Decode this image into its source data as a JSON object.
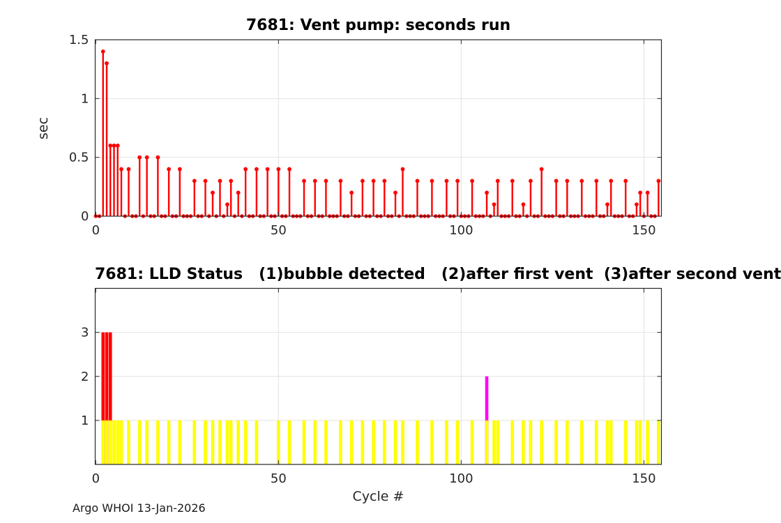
{
  "figure": {
    "background": "#ffffff"
  },
  "footer": {
    "text": "Argo WHOI 13-Jan-2026"
  },
  "style": {
    "axis_color": "#262626",
    "grid_color": "#e2e2e2",
    "tick_label_color": "#262626",
    "stem_color": "#ff0000",
    "status1_color": "#ffff00",
    "status2_color": "#ff00ff",
    "status3_color": "#ff0000"
  },
  "chart_data": [
    {
      "type": "stem",
      "title": "7681: Vent pump: seconds run",
      "ylabel": "sec",
      "xlabel": "",
      "xlim": [
        -0.25,
        155
      ],
      "ylim": [
        0,
        1.5
      ],
      "xticks": [
        0,
        50,
        100,
        150
      ],
      "yticks": [
        0,
        0.5,
        1,
        1.5
      ],
      "ytick_labels": [
        "0",
        "0.5",
        "1",
        "1.5"
      ],
      "xtick_labels": [
        "0",
        "50",
        "100",
        "150"
      ],
      "grid": true,
      "cycle_range": [
        0,
        154
      ],
      "zero_fill": 0,
      "nonzero_points": [
        [
          2,
          1.4
        ],
        [
          3,
          1.3
        ],
        [
          4,
          0.6
        ],
        [
          5,
          0.6
        ],
        [
          6,
          0.6
        ],
        [
          7,
          0.4
        ],
        [
          9,
          0.4
        ],
        [
          12,
          0.5
        ],
        [
          14,
          0.5
        ],
        [
          17,
          0.5
        ],
        [
          20,
          0.4
        ],
        [
          23,
          0.4
        ],
        [
          27,
          0.3
        ],
        [
          30,
          0.3
        ],
        [
          32,
          0.2
        ],
        [
          34,
          0.3
        ],
        [
          36,
          0.1
        ],
        [
          37,
          0.3
        ],
        [
          39,
          0.2
        ],
        [
          41,
          0.4
        ],
        [
          44,
          0.4
        ],
        [
          47,
          0.4
        ],
        [
          50,
          0.4
        ],
        [
          53,
          0.4
        ],
        [
          57,
          0.3
        ],
        [
          60,
          0.3
        ],
        [
          63,
          0.3
        ],
        [
          67,
          0.3
        ],
        [
          70,
          0.2
        ],
        [
          73,
          0.3
        ],
        [
          76,
          0.3
        ],
        [
          79,
          0.3
        ],
        [
          82,
          0.2
        ],
        [
          84,
          0.4
        ],
        [
          88,
          0.3
        ],
        [
          92,
          0.3
        ],
        [
          96,
          0.3
        ],
        [
          99,
          0.3
        ],
        [
          103,
          0.3
        ],
        [
          107,
          0.2
        ],
        [
          109,
          0.1
        ],
        [
          110,
          0.3
        ],
        [
          114,
          0.3
        ],
        [
          117,
          0.1
        ],
        [
          119,
          0.3
        ],
        [
          122,
          0.4
        ],
        [
          126,
          0.3
        ],
        [
          129,
          0.3
        ],
        [
          133,
          0.3
        ],
        [
          137,
          0.3
        ],
        [
          140,
          0.1
        ],
        [
          141,
          0.3
        ],
        [
          145,
          0.3
        ],
        [
          148,
          0.1
        ],
        [
          149,
          0.2
        ],
        [
          151,
          0.2
        ],
        [
          154,
          0.3
        ]
      ]
    },
    {
      "type": "bar",
      "title": "7681: LLD Status   (1)bubble detected   (2)after first vent  (3)after second vent",
      "xlabel": "Cycle #",
      "xlim": [
        -0.25,
        155
      ],
      "ylim": [
        0,
        4
      ],
      "xticks": [
        0,
        50,
        100,
        150
      ],
      "yticks": [
        1,
        2,
        3
      ],
      "ytick_labels": [
        "1",
        "2",
        "3"
      ],
      "xtick_labels": [
        "0",
        "50",
        "100",
        "150"
      ],
      "grid": true,
      "series": [
        {
          "name": "status-3-after-second-vent",
          "color": "#ff0000",
          "value": 3,
          "cycles": [
            2,
            3,
            4
          ]
        },
        {
          "name": "status-2-after-first-vent",
          "color": "#ff00ff",
          "value": 2,
          "cycles": [
            107
          ]
        },
        {
          "name": "status-1-bubble-detected",
          "color": "#ffff00",
          "value": 1,
          "cycles": [
            2,
            3,
            4,
            5,
            6,
            7,
            9,
            12,
            14,
            17,
            20,
            23,
            27,
            30,
            32,
            34,
            36,
            37,
            39,
            41,
            44,
            50,
            53,
            57,
            60,
            63,
            67,
            70,
            73,
            76,
            79,
            82,
            84,
            88,
            92,
            96,
            99,
            103,
            107,
            109,
            110,
            114,
            117,
            119,
            122,
            126,
            129,
            133,
            137,
            140,
            141,
            145,
            148,
            149,
            151,
            154
          ]
        }
      ]
    }
  ]
}
